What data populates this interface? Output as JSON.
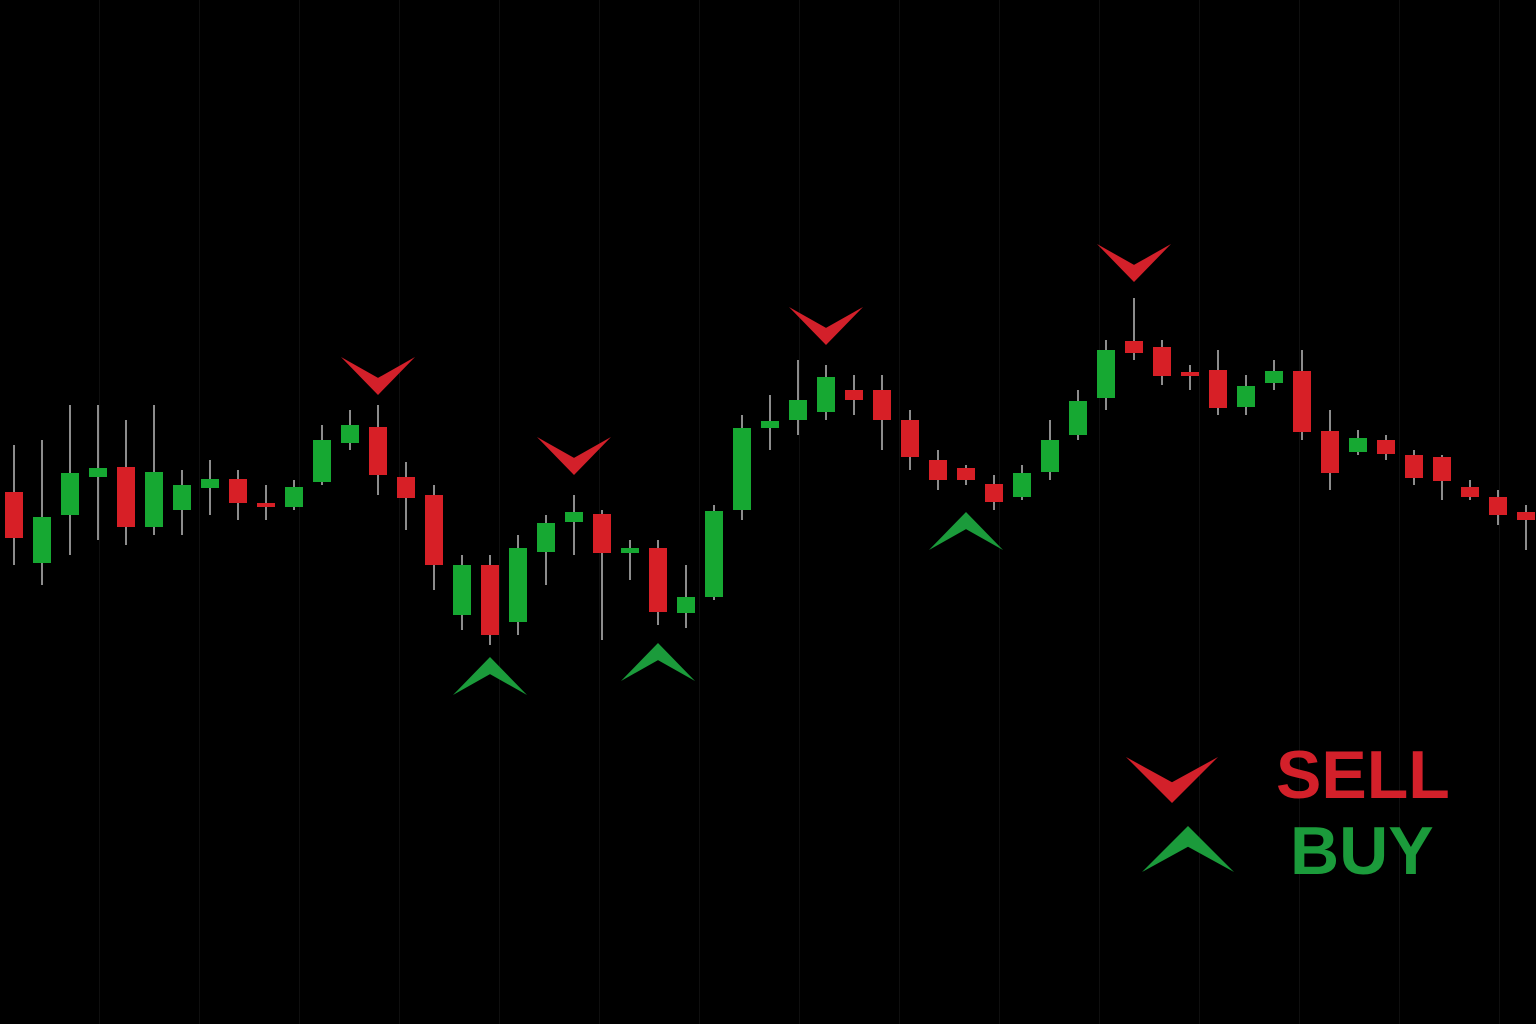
{
  "chart_data": {
    "type": "candlestick",
    "categories": [
      null,
      null,
      null,
      null,
      null,
      null,
      null,
      null,
      null,
      null,
      null,
      null,
      null,
      null,
      null,
      null,
      null,
      null,
      null,
      null,
      null,
      null,
      null,
      null,
      null,
      null,
      null,
      null,
      null,
      null,
      null,
      null,
      null,
      null,
      null,
      null,
      null,
      null,
      null,
      null,
      null,
      null,
      null,
      null,
      null,
      null,
      null,
      null,
      null,
      null,
      null,
      null,
      null,
      null,
      null
    ],
    "open": [
      532,
      461,
      509,
      547,
      557,
      497,
      514,
      536,
      545,
      521,
      517,
      542,
      581,
      597,
      547,
      529,
      409,
      459,
      402,
      472,
      502,
      510,
      471,
      476,
      411,
      427,
      514,
      596,
      604,
      612,
      634,
      634,
      604,
      564,
      556,
      540,
      527,
      552,
      589,
      626,
      683,
      677,
      652,
      654,
      617,
      641,
      653,
      593,
      572,
      584,
      569,
      567,
      537,
      527,
      512
    ],
    "high": [
      579,
      584,
      619,
      619,
      604,
      619,
      554,
      564,
      554,
      539,
      544,
      599,
      614,
      619,
      562,
      539,
      469,
      469,
      489,
      509,
      529,
      514,
      484,
      484,
      459,
      519,
      609,
      629,
      664,
      659,
      649,
      649,
      614,
      574,
      559,
      549,
      559,
      604,
      634,
      684,
      726,
      684,
      659,
      674,
      649,
      664,
      674,
      614,
      594,
      589,
      574,
      569,
      544,
      534,
      519
    ],
    "low": [
      459,
      439,
      469,
      484,
      479,
      489,
      489,
      509,
      504,
      504,
      514,
      539,
      574,
      529,
      494,
      434,
      394,
      379,
      389,
      439,
      469,
      384,
      444,
      399,
      396,
      424,
      504,
      574,
      589,
      604,
      609,
      574,
      554,
      534,
      539,
      514,
      524,
      544,
      584,
      614,
      664,
      639,
      634,
      609,
      609,
      634,
      584,
      534,
      569,
      564,
      539,
      524,
      524,
      499,
      474
    ],
    "close": [
      486,
      507,
      551,
      556,
      497,
      552,
      539,
      545,
      521,
      517,
      537,
      584,
      599,
      549,
      526,
      459,
      459,
      389,
      476,
      501,
      512,
      471,
      476,
      412,
      427,
      513,
      596,
      603,
      624,
      647,
      624,
      604,
      567,
      544,
      544,
      522,
      551,
      584,
      623,
      674,
      671,
      648,
      648,
      616,
      638,
      653,
      592,
      551,
      586,
      570,
      546,
      543,
      527,
      509,
      504
    ],
    "up_color": "#16a832",
    "down_color": "#d71f26",
    "wick_color": "#d8d8d8",
    "ylim": [
      0,
      1024
    ],
    "series": [
      {
        "name": "SELL",
        "color": "#d3202a",
        "values": [
          null,
          null,
          null,
          null,
          null,
          null,
          null,
          null,
          null,
          null,
          null,
          null,
          null,
          629,
          null,
          null,
          null,
          null,
          null,
          null,
          549,
          null,
          null,
          null,
          null,
          null,
          null,
          null,
          null,
          679,
          null,
          null,
          null,
          null,
          null,
          null,
          null,
          null,
          null,
          null,
          742,
          null,
          null,
          null,
          null,
          null,
          null,
          null,
          null,
          null,
          null,
          null,
          null,
          null,
          null
        ]
      },
      {
        "name": "BUY",
        "color": "#1b9b3b",
        "values": [
          null,
          null,
          null,
          null,
          null,
          null,
          null,
          null,
          null,
          null,
          null,
          null,
          null,
          null,
          null,
          null,
          null,
          367,
          null,
          null,
          null,
          null,
          null,
          381,
          null,
          null,
          null,
          null,
          null,
          null,
          null,
          null,
          null,
          null,
          512,
          null,
          null,
          null,
          null,
          null,
          null,
          null,
          null,
          null,
          null,
          null,
          null,
          null,
          null,
          null,
          null,
          null,
          null,
          null,
          null
        ]
      }
    ]
  }
}
